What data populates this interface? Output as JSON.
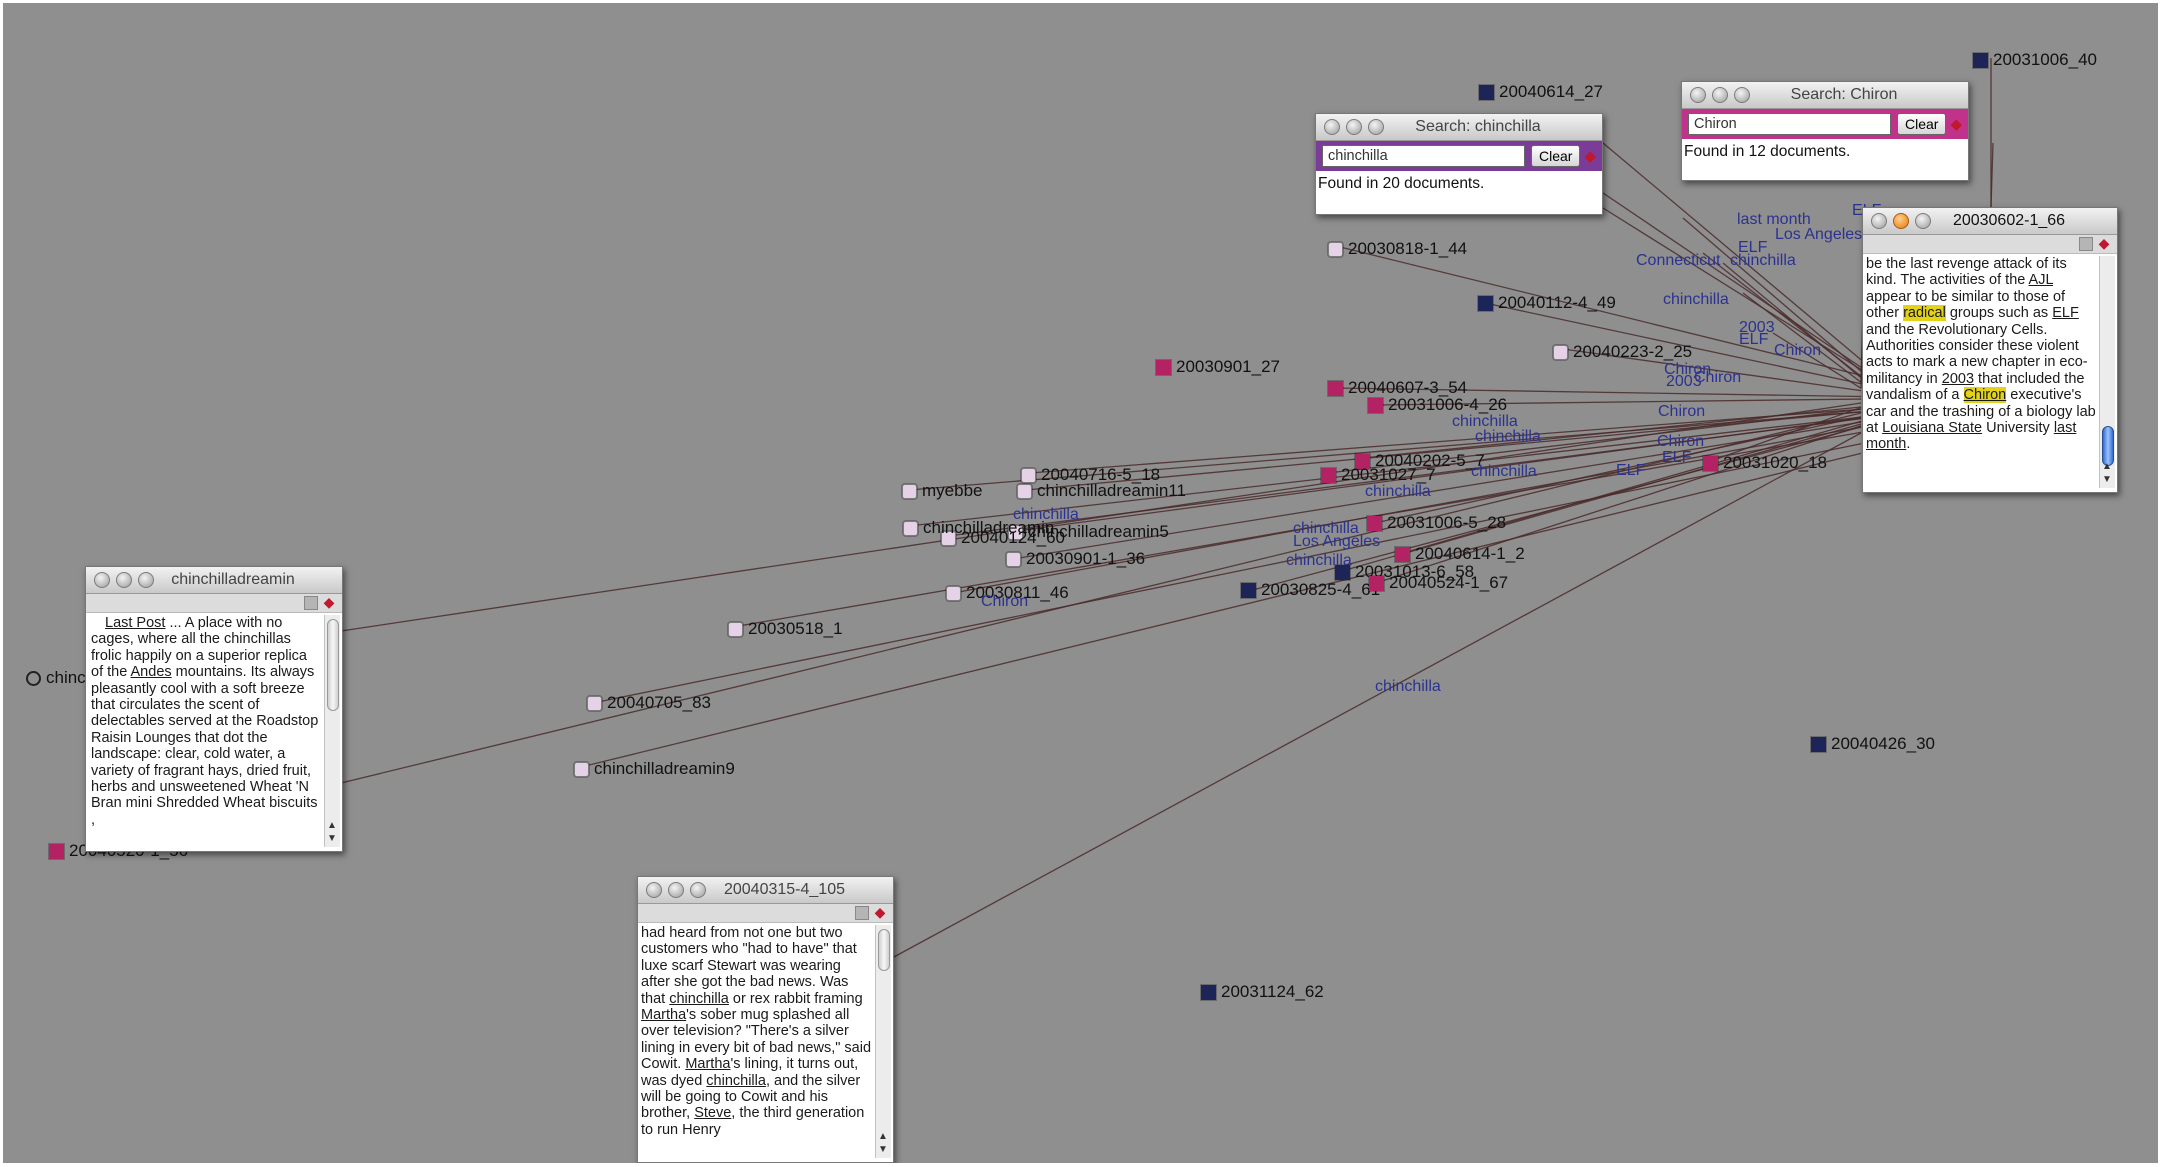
{
  "nodes": [
    {
      "label": "20040614_27",
      "kind": "navy"
    },
    {
      "label": "20031006_40",
      "kind": "navy"
    },
    {
      "label": "20030818-1_44",
      "kind": "light"
    },
    {
      "label": "20040112-4_49",
      "kind": "navy"
    },
    {
      "label": "20030901_27",
      "kind": "pink"
    },
    {
      "label": "20040223-2_25",
      "kind": "light"
    },
    {
      "label": "20040607-3_54",
      "kind": "pink"
    },
    {
      "label": "20031006-4_26",
      "kind": "pink"
    },
    {
      "label": "20040202-5_7",
      "kind": "pink"
    },
    {
      "label": "20031027_7",
      "kind": "pink"
    },
    {
      "label": "20031020_18",
      "kind": "pink"
    },
    {
      "label": "20031006-5_28",
      "kind": "pink"
    },
    {
      "label": "20040614-1_2",
      "kind": "pink"
    },
    {
      "label": "20031013-6_58",
      "kind": "navy"
    },
    {
      "label": "20030825-4_61",
      "kind": "navy"
    },
    {
      "label": "20040524-1_67",
      "kind": "pink"
    },
    {
      "label": "20030518_1",
      "kind": "light"
    },
    {
      "label": "20040705_83",
      "kind": "light"
    },
    {
      "label": "chinchilladreamin9",
      "kind": "light"
    },
    {
      "label": "20040426_30",
      "kind": "navy"
    },
    {
      "label": "20031124_62",
      "kind": "navy"
    },
    {
      "label": "chinchilladreamin11",
      "kind": "light"
    },
    {
      "label": "chinchilladreamin5",
      "kind": "light"
    },
    {
      "label": "20040716-5_18",
      "kind": "light"
    },
    {
      "label": "20030901-1_36",
      "kind": "light"
    },
    {
      "label": "20040124_60",
      "kind": "light"
    },
    {
      "label": "myebbe",
      "kind": "light"
    },
    {
      "label": "chinchilladreamin",
      "kind": "light"
    },
    {
      "label": "chinchilla",
      "kind": "light"
    },
    {
      "label": "20030811_46",
      "kind": "light"
    },
    {
      "label": "20040520-1_56",
      "kind": "pink"
    }
  ],
  "terms": [
    "last month",
    "Los Angeles",
    "ELF",
    "Connecticut",
    "chinchilla",
    "chinchilla",
    "2003",
    "ELF",
    "Chiron",
    "Chiron",
    "2003",
    "Chiron",
    "chinchilla",
    "Chiron",
    "ELF",
    "Chiron",
    "chinchilla",
    "Los Angeles",
    "chinchilla",
    "chinchilla",
    "chinchilla",
    "chinchilla",
    "chinchilla",
    "ELF",
    "ELF",
    "chinchilla",
    "Chiron"
  ],
  "windows": {
    "search_chinchilla": {
      "title": "Search: chinchilla",
      "query": "chinchilla",
      "clear_label": "Clear",
      "status": "Found in 20 documents."
    },
    "search_chiron": {
      "title": "Search: Chiron",
      "query": "Chiron",
      "clear_label": "Clear",
      "status": "Found in 12 documents."
    },
    "doc_right": {
      "title": "20030602-1_66",
      "p1": "be the last revenge attack of its kind.       The activities of the ",
      "w_ajl": "AJL",
      "p2": " appear to be similar to those of other ",
      "w_radical": "radical",
      "p3": " groups        such as ",
      "w_elf": "ELF",
      "p4": " and the Revolutionary Cells. Authorities consider these violent acts       to mark a new chapter in eco-militancy in ",
      "w_2003": "2003",
      "p5": " that included the vandalism of    a ",
      "w_chiron": "Chiron",
      "p6": " executive's car and the trashing of a biology lab at ",
      "w_lsu": "Louisiana State",
      "p7": "       University ",
      "w_lastmonth": "last month",
      "p8": "."
    },
    "doc_left": {
      "title": "chinchilladreamin",
      "w_lastpost": "Last Post",
      "p1": "         ... A place with no cages, where all the chinchillas frolic happily on a superior replica of the ",
      "w_andes": "Andes",
      "p2": " mountains. Its always pleasantly cool with a soft breeze that circulates the scent of delectables served at the Roadstop Raisin Lounges that dot the landscape: clear, cold water, a variety of fragrant hays, dried fruit, herbs and unsweetened Wheat 'N Bran mini Shredded Wheat biscuits ,"
    },
    "doc_bottom": {
      "title": "20040315-4_105",
      "p1": "had heard from not one but two customers who \"had to have\" that luxe     scarf Stewart was wearing after she got the bad news.        Was that ",
      "w_chinchilla1": "chinchilla",
      "p2": " or rex rabbit framing ",
      "w_martha1": "Martha",
      "p3": "'s sober mug splashed all      over television?        \"There's a silver lining in every bit of bad news,\" said Cowit.       ",
      "w_martha2": "Martha",
      "p4": "'s lining, it turns out, was dyed ",
      "w_chinchilla2": "chinchilla",
      "p5": ", and the silver will be      going to Cowit and his brother, ",
      "w_steve": "Steve",
      "p6": ", the third generation to run Henry"
    }
  }
}
